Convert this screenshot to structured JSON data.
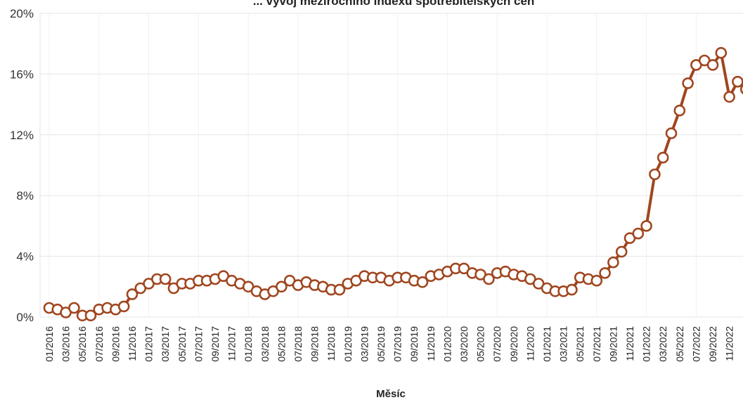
{
  "chart_data": {
    "type": "line",
    "title": "... vývoj meziročního indexu spotřebitelských cen",
    "xlabel": "Měsíc",
    "ylabel": "",
    "ylim": [
      0,
      20
    ],
    "y_ticks": [
      "0%",
      "4%",
      "8%",
      "12%",
      "16%",
      "20%"
    ],
    "y_tick_values": [
      0,
      4,
      8,
      12,
      16,
      20
    ],
    "x_tick_labels": [
      "01/2016",
      "03/2016",
      "05/2016",
      "07/2016",
      "09/2016",
      "11/2016",
      "01/2017",
      "03/2017",
      "05/2017",
      "07/2017",
      "09/2017",
      "11/2017",
      "01/2018",
      "03/2018",
      "05/2018",
      "07/2018",
      "09/2018",
      "11/2018",
      "01/2019",
      "03/2019",
      "05/2019",
      "07/2019",
      "09/2019",
      "11/2019",
      "01/2020",
      "03/2020",
      "05/2020",
      "07/2020",
      "09/2020",
      "11/2020",
      "01/2021",
      "03/2021",
      "05/2021",
      "07/2021",
      "09/2021",
      "11/2021",
      "01/2022",
      "03/2022",
      "05/2022",
      "07/2022",
      "09/2022",
      "11/2022"
    ],
    "x_start": "01/2016",
    "series": [
      {
        "name": "",
        "color": "#a0461f",
        "values": [
          0.6,
          0.5,
          0.3,
          0.6,
          0.1,
          0.1,
          0.5,
          0.6,
          0.5,
          0.7,
          1.5,
          1.9,
          2.2,
          2.5,
          2.5,
          1.9,
          2.2,
          2.2,
          2.4,
          2.4,
          2.5,
          2.7,
          2.4,
          2.2,
          2.0,
          1.7,
          1.5,
          1.7,
          2.0,
          2.4,
          2.1,
          2.3,
          2.1,
          2.0,
          1.8,
          1.8,
          2.2,
          2.4,
          2.7,
          2.6,
          2.6,
          2.4,
          2.6,
          2.6,
          2.4,
          2.3,
          2.7,
          2.8,
          3.0,
          3.2,
          3.2,
          2.9,
          2.8,
          2.5,
          2.9,
          3.0,
          2.8,
          2.7,
          2.5,
          2.2,
          1.9,
          1.7,
          1.7,
          1.8,
          2.6,
          2.5,
          2.4,
          2.9,
          3.6,
          4.3,
          5.2,
          5.5,
          6.0,
          9.4,
          10.5,
          12.1,
          13.6,
          15.4,
          16.6,
          16.9,
          16.6,
          17.4,
          14.5,
          15.5,
          15.0
        ]
      }
    ],
    "grid": true,
    "legend": "none"
  }
}
